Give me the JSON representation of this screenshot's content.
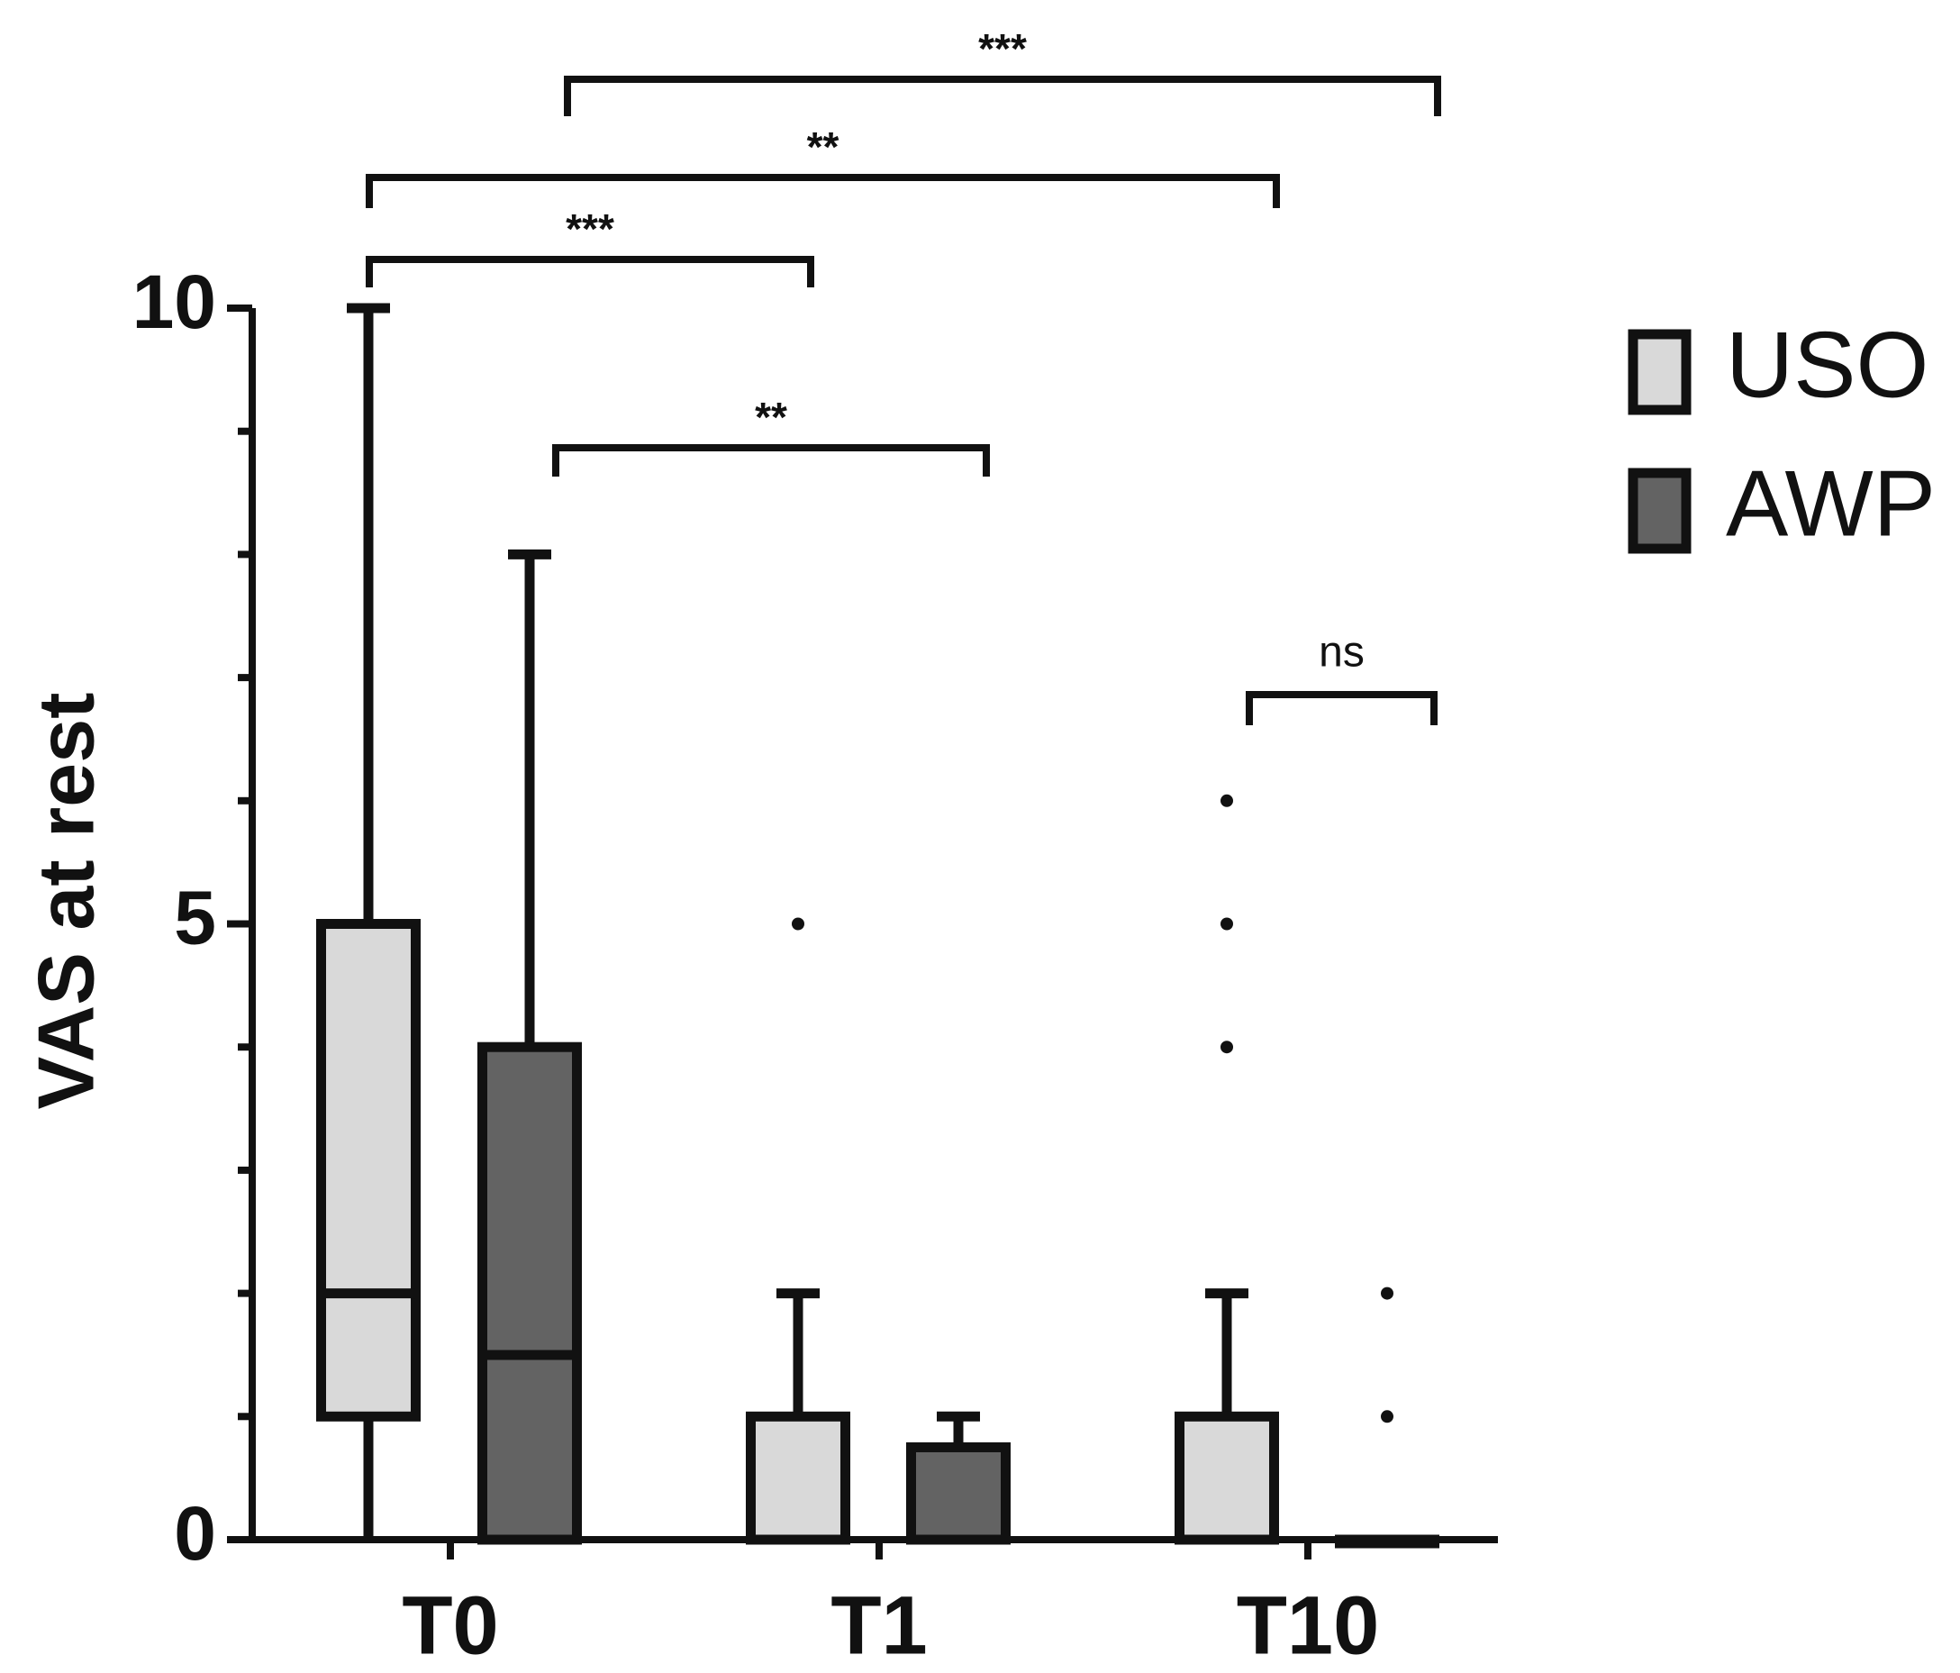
{
  "chart_data": {
    "type": "box",
    "y_label": "VAS at rest",
    "categories": [
      "T0",
      "T1",
      "T10"
    ],
    "ylim": [
      0,
      10
    ],
    "yticks": [
      0,
      5,
      10
    ],
    "minor_yticks": [
      1,
      2,
      3,
      4,
      6,
      7,
      8,
      9
    ],
    "series": [
      {
        "name": "USO",
        "color": "#d9d9d9",
        "boxes": [
          {
            "min": 0,
            "q1": 1,
            "median": 2,
            "q3": 5,
            "max": 10,
            "outliers": []
          },
          {
            "min": 0,
            "q1": 0,
            "median": 0,
            "q3": 1,
            "max": 2,
            "outliers": [
              5
            ]
          },
          {
            "min": 0,
            "q1": 0,
            "median": 0,
            "q3": 1,
            "max": 2,
            "outliers": [
              4,
              5,
              6
            ]
          }
        ]
      },
      {
        "name": "AWP",
        "color": "#636363",
        "boxes": [
          {
            "min": 0,
            "q1": 0,
            "median": 1.5,
            "q3": 4,
            "max": 8,
            "outliers": []
          },
          {
            "min": 0,
            "q1": 0,
            "median": 0,
            "q3": 0.75,
            "max": 1,
            "outliers": []
          },
          {
            "min": 0,
            "q1": 0,
            "median": 0,
            "q3": 0,
            "max": 0,
            "outliers": [
              1,
              2
            ]
          }
        ]
      }
    ],
    "annotations": [
      "***",
      "**",
      "***",
      "**",
      "ns"
    ]
  }
}
